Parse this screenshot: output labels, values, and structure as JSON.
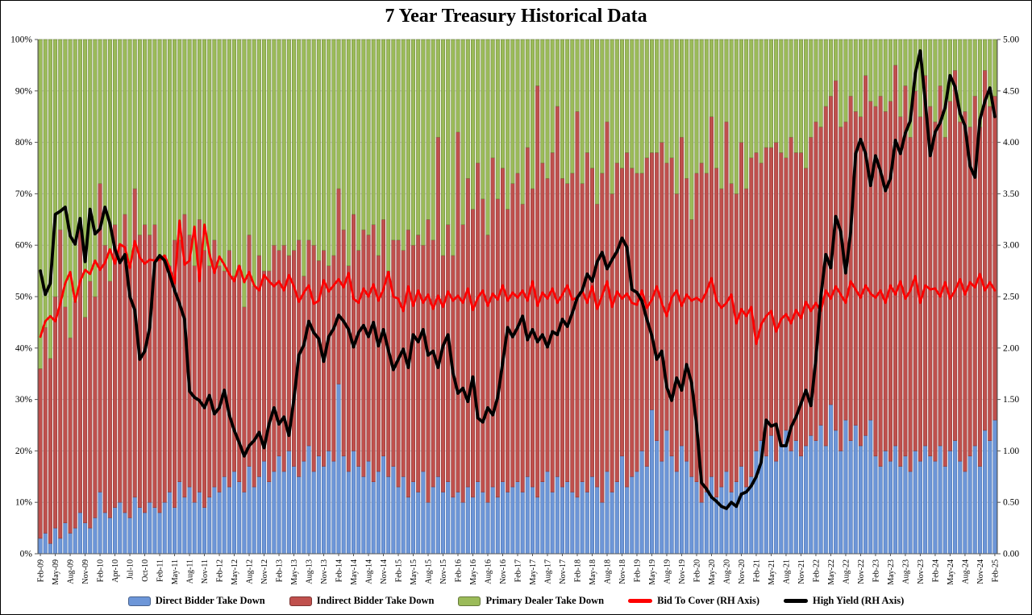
{
  "chart_data": {
    "type": "combo",
    "title": "7 Year Treasury Historical Data",
    "background": "#ffffff",
    "grid": true,
    "legend_position": "bottom",
    "stacked_to_100": true,
    "n_points": 193,
    "x_tick_every": 3,
    "x_tick_labels": [
      "Feb-09",
      "May-09",
      "Aug-09",
      "Nov-09",
      "Feb-10",
      "Apr-10",
      "Jul-10",
      "Oct-10",
      "Feb-11",
      "May-11",
      "Aug-11",
      "Nov-11",
      "Feb-12",
      "May-12",
      "Aug-12",
      "Nov-12",
      "Feb-13",
      "May-13",
      "Aug-13",
      "Nov-13",
      "Feb-14",
      "May-14",
      "Aug-14",
      "Nov-14",
      "Feb-15",
      "May-15",
      "Aug-15",
      "Nov-15",
      "Feb-16",
      "May-16",
      "Aug-16",
      "Nov-16",
      "Feb-17",
      "May-17",
      "Aug-17",
      "Nov-17",
      "Feb-18",
      "May-18",
      "Aug-18",
      "Nov-18",
      "Feb-19",
      "May-19",
      "Aug-19",
      "Nov-19",
      "Feb-20",
      "May-20",
      "Aug-20",
      "Nov-20",
      "Feb-21",
      "May-21",
      "Aug-21",
      "Nov-21",
      "Feb-22",
      "May-22",
      "Aug-22",
      "Nov-22",
      "Feb-23",
      "May-23",
      "Aug-23",
      "Nov-23",
      "Feb-24",
      "May-24",
      "Aug-24",
      "Nov-24",
      "Feb-25"
    ],
    "left_axis": {
      "min": 0,
      "max": 100,
      "tick_labels": [
        "0%",
        "10%",
        "20%",
        "30%",
        "40%",
        "50%",
        "60%",
        "70%",
        "80%",
        "90%",
        "100%"
      ]
    },
    "right_axis": {
      "min": 0,
      "max": 5,
      "tick_labels": [
        "0.00",
        "0.50",
        "1.00",
        "1.50",
        "2.00",
        "2.50",
        "3.00",
        "3.50",
        "4.00",
        "4.50",
        "5.00"
      ]
    },
    "series": [
      {
        "name": "Direct Bidder Take Down",
        "type": "bar",
        "axis": "left",
        "color": "#6D96D8",
        "border": "#4A72B0",
        "values": [
          3,
          4,
          2,
          5,
          3,
          6,
          4,
          5,
          8,
          6,
          5,
          7,
          12,
          8,
          7,
          9,
          10,
          8,
          7,
          11,
          9,
          8,
          10,
          9,
          8,
          10,
          12,
          9,
          14,
          11,
          13,
          10,
          12,
          9,
          11,
          13,
          12,
          15,
          13,
          16,
          14,
          12,
          17,
          13,
          15,
          18,
          14,
          16,
          19,
          16,
          20,
          17,
          15,
          18,
          21,
          16,
          19,
          17,
          20,
          18,
          33,
          19,
          16,
          20,
          17,
          15,
          18,
          14,
          16,
          19,
          15,
          17,
          13,
          15,
          11,
          14,
          12,
          16,
          10,
          13,
          15,
          12,
          14,
          11,
          12,
          10,
          13,
          11,
          14,
          12,
          10,
          13,
          11,
          14,
          12,
          13,
          14,
          12,
          15,
          13,
          11,
          14,
          16,
          12,
          15,
          13,
          14,
          12,
          11,
          14,
          12,
          15,
          13,
          10,
          16,
          12,
          14,
          19,
          13,
          15,
          16,
          20,
          17,
          28,
          22,
          18,
          24,
          19,
          16,
          21,
          18,
          15,
          14,
          10,
          12,
          15,
          11,
          13,
          16,
          12,
          14,
          17,
          13,
          15,
          20,
          22,
          19,
          23,
          18,
          21,
          24,
          20,
          22,
          19,
          21,
          23,
          22,
          25,
          21,
          29,
          24,
          20,
          26,
          22,
          25,
          21,
          23,
          26,
          19,
          17,
          20,
          18,
          21,
          17,
          19,
          16,
          20,
          18,
          21,
          19,
          18,
          21,
          17,
          20,
          22,
          18,
          16,
          19,
          21,
          17,
          24,
          22,
          26
        ]
      },
      {
        "name": "Indirect Bidder Take Down",
        "type": "bar",
        "axis": "left",
        "color": "#C0504D",
        "border": "#8C3836",
        "values": [
          33,
          40,
          36,
          45,
          60,
          42,
          38,
          44,
          55,
          40,
          48,
          43,
          60,
          52,
          46,
          55,
          50,
          58,
          49,
          60,
          53,
          56,
          52,
          55,
          50,
          48,
          44,
          52,
          47,
          55,
          49,
          46,
          53,
          50,
          45,
          48,
          44,
          40,
          46,
          38,
          42,
          36,
          45,
          39,
          43,
          37,
          41,
          44,
          40,
          44,
          38,
          42,
          46,
          36,
          40,
          44,
          38,
          42,
          36,
          40,
          38,
          44,
          40,
          46,
          42,
          48,
          44,
          50,
          42,
          46,
          40,
          44,
          48,
          44,
          52,
          46,
          50,
          44,
          55,
          48,
          66,
          46,
          50,
          47,
          70,
          54,
          60,
          56,
          62,
          57,
          52,
          64,
          58,
          61,
          55,
          59,
          60,
          56,
          64,
          58,
          80,
          62,
          57,
          66,
          72,
          60,
          58,
          62,
          75,
          58,
          66,
          60,
          55,
          64,
          68,
          58,
          62,
          56,
          65,
          60,
          58,
          54,
          60,
          50,
          56,
          62,
          52,
          58,
          54,
          60,
          55,
          50,
          60,
          66,
          62,
          70,
          64,
          58,
          68,
          60,
          56,
          63,
          58,
          62,
          58,
          54,
          60,
          56,
          62,
          57,
          53,
          61,
          56,
          59,
          54,
          58,
          62,
          58,
          66,
          60,
          68,
          63,
          58,
          67,
          61,
          64,
          70,
          62,
          68,
          72,
          66,
          70,
          74,
          68,
          72,
          65,
          70,
          67,
          72,
          68,
          66,
          70,
          64,
          68,
          72,
          66,
          70,
          64,
          68,
          66,
          70,
          65,
          63
        ]
      },
      {
        "name": "Primary Dealer Take Down",
        "type": "bar",
        "axis": "left",
        "color": "#9BBB59",
        "border": "#71893F",
        "values": [
          64,
          56,
          62,
          50,
          37,
          52,
          58,
          51,
          37,
          54,
          47,
          50,
          28,
          40,
          47,
          36,
          40,
          34,
          44,
          29,
          38,
          36,
          38,
          36,
          42,
          42,
          44,
          39,
          39,
          34,
          38,
          44,
          35,
          41,
          44,
          39,
          44,
          45,
          41,
          46,
          44,
          52,
          38,
          48,
          42,
          45,
          45,
          40,
          41,
          40,
          42,
          41,
          39,
          46,
          39,
          40,
          43,
          41,
          44,
          42,
          29,
          37,
          44,
          34,
          41,
          37,
          38,
          36,
          42,
          35,
          45,
          39,
          39,
          41,
          37,
          40,
          38,
          40,
          35,
          39,
          19,
          42,
          36,
          42,
          18,
          36,
          27,
          33,
          24,
          31,
          38,
          23,
          31,
          25,
          33,
          28,
          26,
          32,
          21,
          29,
          9,
          24,
          27,
          22,
          13,
          27,
          28,
          26,
          14,
          28,
          22,
          25,
          32,
          26,
          16,
          30,
          24,
          25,
          22,
          25,
          26,
          26,
          23,
          22,
          22,
          20,
          24,
          23,
          30,
          19,
          27,
          35,
          26,
          24,
          26,
          15,
          25,
          29,
          16,
          28,
          30,
          20,
          29,
          23,
          22,
          24,
          21,
          21,
          20,
          22,
          23,
          19,
          22,
          22,
          25,
          19,
          16,
          17,
          13,
          11,
          8,
          17,
          16,
          11,
          14,
          15,
          7,
          12,
          13,
          11,
          14,
          12,
          5,
          15,
          9,
          19,
          10,
          15,
          7,
          13,
          16,
          9,
          19,
          12,
          6,
          16,
          14,
          17,
          11,
          17,
          6,
          13,
          11
        ]
      },
      {
        "name": "Bid To Cover (RH Axis)",
        "type": "line",
        "axis": "right",
        "color": "#FE0000",
        "width": 2.8,
        "values": [
          2.11,
          2.26,
          2.31,
          2.26,
          2.43,
          2.63,
          2.74,
          2.45,
          2.65,
          2.76,
          2.72,
          2.85,
          2.76,
          2.83,
          2.96,
          2.82,
          3.01,
          2.98,
          2.78,
          3.04,
          2.88,
          2.82,
          2.86,
          2.85,
          2.86,
          2.9,
          2.78,
          2.63,
          3.24,
          2.81,
          2.85,
          3.18,
          2.65,
          3.2,
          2.92,
          2.73,
          2.89,
          2.81,
          2.72,
          2.65,
          2.8,
          2.64,
          2.74,
          2.61,
          2.56,
          2.71,
          2.65,
          2.6,
          2.65,
          2.56,
          2.71,
          2.6,
          2.45,
          2.54,
          2.61,
          2.43,
          2.46,
          2.66,
          2.55,
          2.61,
          2.67,
          2.59,
          2.73,
          2.48,
          2.44,
          2.58,
          2.5,
          2.62,
          2.46,
          2.57,
          2.74,
          2.5,
          2.48,
          2.36,
          2.6,
          2.41,
          2.56,
          2.44,
          2.52,
          2.38,
          2.51,
          2.4,
          2.55,
          2.46,
          2.51,
          2.44,
          2.58,
          2.37,
          2.49,
          2.56,
          2.41,
          2.53,
          2.47,
          2.61,
          2.46,
          2.54,
          2.49,
          2.56,
          2.46,
          2.65,
          2.41,
          2.54,
          2.48,
          2.58,
          2.44,
          2.52,
          2.61,
          2.47,
          2.49,
          2.56,
          2.44,
          2.6,
          2.38,
          2.51,
          2.65,
          2.4,
          2.55,
          2.48,
          2.53,
          2.44,
          2.42,
          2.56,
          2.39,
          2.47,
          2.6,
          2.44,
          2.31,
          2.49,
          2.56,
          2.41,
          2.52,
          2.46,
          2.49,
          2.45,
          2.55,
          2.68,
          2.46,
          2.39,
          2.44,
          2.52,
          2.24,
          2.38,
          2.31,
          2.4,
          2.04,
          2.23,
          2.31,
          2.36,
          2.16,
          2.28,
          2.33,
          2.24,
          2.37,
          2.29,
          2.45,
          2.36,
          2.44,
          2.36,
          2.56,
          2.48,
          2.6,
          2.52,
          2.44,
          2.65,
          2.57,
          2.49,
          2.61,
          2.53,
          2.49,
          2.56,
          2.44,
          2.61,
          2.52,
          2.65,
          2.48,
          2.56,
          2.7,
          2.44,
          2.61,
          2.57,
          2.58,
          2.5,
          2.64,
          2.48,
          2.56,
          2.67,
          2.52,
          2.64,
          2.59,
          2.72,
          2.56,
          2.64,
          2.56
        ]
      },
      {
        "name": "High Yield (RH Axis)",
        "type": "line",
        "axis": "right",
        "color": "#000000",
        "width": 3.8,
        "values": [
          2.75,
          2.52,
          2.63,
          3.3,
          3.33,
          3.37,
          3.09,
          3.01,
          3.26,
          2.84,
          3.35,
          3.11,
          3.16,
          3.37,
          3.21,
          2.96,
          2.83,
          2.91,
          2.5,
          2.37,
          1.89,
          1.97,
          2.2,
          2.83,
          2.9,
          2.85,
          2.71,
          2.56,
          2.43,
          2.28,
          1.58,
          1.52,
          1.49,
          1.42,
          1.54,
          1.36,
          1.42,
          1.59,
          1.35,
          1.2,
          1.08,
          0.95,
          1.05,
          1.1,
          1.18,
          1.03,
          1.26,
          1.42,
          1.26,
          1.33,
          1.15,
          1.5,
          1.93,
          2.03,
          2.26,
          2.15,
          2.09,
          1.87,
          2.11,
          2.19,
          2.32,
          2.26,
          2.18,
          2.01,
          2.15,
          2.22,
          2.11,
          2.25,
          2.02,
          2.18,
          1.98,
          1.79,
          1.89,
          1.99,
          1.81,
          2.13,
          2.06,
          2.18,
          1.93,
          1.97,
          1.81,
          2.02,
          2.13,
          1.76,
          1.56,
          1.61,
          1.48,
          1.72,
          1.32,
          1.28,
          1.42,
          1.35,
          1.52,
          1.86,
          2.2,
          2.11,
          2.2,
          2.31,
          2.08,
          2.18,
          2.06,
          2.13,
          2.01,
          2.16,
          2.13,
          2.28,
          2.21,
          2.34,
          2.49,
          2.56,
          2.72,
          2.65,
          2.84,
          2.93,
          2.77,
          2.86,
          2.94,
          3.07,
          2.98,
          2.57,
          2.54,
          2.46,
          2.28,
          2.12,
          1.89,
          1.97,
          1.62,
          1.49,
          1.71,
          1.59,
          1.84,
          1.66,
          1.25,
          0.69,
          0.63,
          0.55,
          0.51,
          0.46,
          0.44,
          0.5,
          0.46,
          0.58,
          0.6,
          0.66,
          0.75,
          0.89,
          1.3,
          1.24,
          1.26,
          1.05,
          1.05,
          1.23,
          1.33,
          1.46,
          1.59,
          1.44,
          1.89,
          2.5,
          2.91,
          2.78,
          3.28,
          3.13,
          2.73,
          3.13,
          3.89,
          4.03,
          3.89,
          3.58,
          3.87,
          3.72,
          3.53,
          3.65,
          4.02,
          3.89,
          4.09,
          4.21,
          4.67,
          4.89,
          4.4,
          3.87,
          4.1,
          4.19,
          4.34,
          4.65,
          4.54,
          4.28,
          4.16,
          3.77,
          3.66,
          4.22,
          4.4,
          4.53,
          4.25
        ]
      }
    ]
  }
}
